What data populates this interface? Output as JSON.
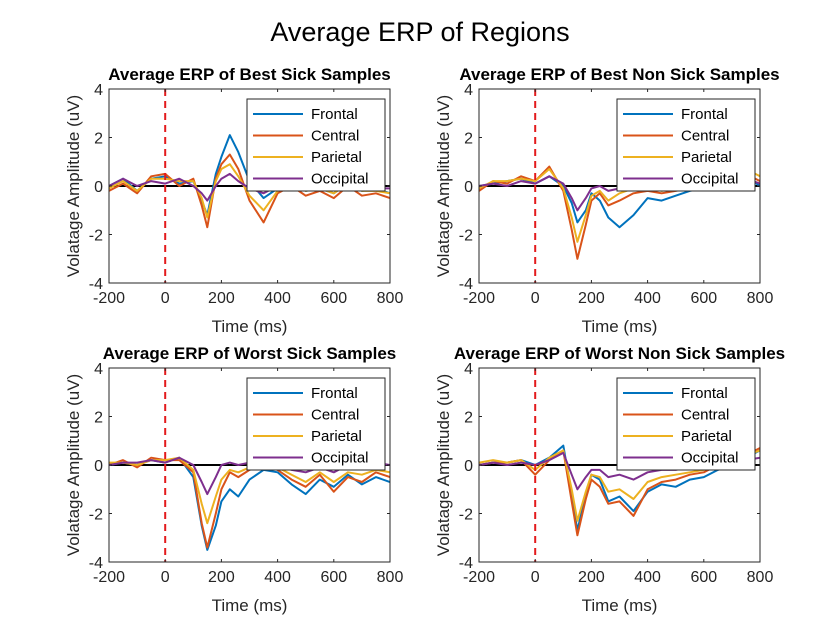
{
  "figure_title": "Average ERP of Regions",
  "chart_data": [
    {
      "type": "line",
      "title": "Average ERP of Best Sick Samples",
      "xlabel": "Time (ms)",
      "ylabel": "Volatage Amplitude (uV)",
      "xlim": [
        -200,
        800
      ],
      "ylim": [
        -4,
        4
      ],
      "xticks": [
        "-200",
        "0",
        "200",
        "400",
        "600",
        "800"
      ],
      "yticks": [
        "-4",
        "-2",
        "0",
        "2",
        "4"
      ],
      "legend_position": "top-right",
      "stimulus_marker_x": 0,
      "zero_line": true,
      "series": [
        {
          "name": "Frontal",
          "color": "#0072BD",
          "x": [
            -200,
            -150,
            -100,
            -50,
            0,
            50,
            100,
            130,
            150,
            180,
            200,
            230,
            260,
            300,
            350,
            400,
            450,
            500,
            550,
            600,
            650,
            700,
            750,
            800
          ],
          "y": [
            0.0,
            0.3,
            -0.2,
            0.3,
            0.4,
            0.1,
            0.2,
            -0.6,
            -1.2,
            0.5,
            1.2,
            2.1,
            1.4,
            0.2,
            -0.5,
            -0.1,
            0.1,
            -0.2,
            -0.1,
            -0.3,
            0.1,
            -0.2,
            -0.1,
            -0.3
          ]
        },
        {
          "name": "Central",
          "color": "#D95319",
          "x": [
            -200,
            -150,
            -100,
            -50,
            0,
            50,
            100,
            130,
            150,
            180,
            200,
            230,
            260,
            300,
            350,
            400,
            450,
            500,
            550,
            600,
            650,
            700,
            750,
            800
          ],
          "y": [
            -0.2,
            0.1,
            -0.3,
            0.4,
            0.5,
            0.0,
            0.3,
            -0.8,
            -1.7,
            0.3,
            0.9,
            1.3,
            0.7,
            -0.6,
            -1.5,
            -0.3,
            0.0,
            -0.4,
            -0.2,
            -0.5,
            0.0,
            -0.4,
            -0.3,
            -0.5
          ]
        },
        {
          "name": "Parietal",
          "color": "#EDB120",
          "x": [
            -200,
            -150,
            -100,
            -50,
            0,
            50,
            100,
            130,
            150,
            180,
            200,
            230,
            260,
            300,
            350,
            400,
            450,
            500,
            550,
            600,
            650,
            700,
            750,
            800
          ],
          "y": [
            -0.1,
            0.2,
            -0.2,
            0.3,
            0.3,
            0.2,
            0.2,
            -0.5,
            -1.3,
            0.2,
            0.7,
            0.9,
            0.4,
            -0.4,
            -1.0,
            -0.2,
            0.1,
            -0.2,
            -0.1,
            -0.3,
            0.1,
            -0.2,
            -0.2,
            -0.3
          ]
        },
        {
          "name": "Occipital",
          "color": "#7E2F8E",
          "x": [
            -200,
            -150,
            -100,
            -50,
            0,
            50,
            100,
            130,
            150,
            180,
            200,
            230,
            260,
            300,
            350,
            400,
            450,
            500,
            550,
            600,
            650,
            700,
            750,
            800
          ],
          "y": [
            0.0,
            0.3,
            0.0,
            0.2,
            0.1,
            0.3,
            0.0,
            -0.3,
            -0.6,
            0.0,
            0.3,
            0.5,
            0.2,
            -0.1,
            -0.3,
            0.0,
            0.1,
            -0.1,
            0.0,
            -0.1,
            0.1,
            0.0,
            -0.1,
            -0.1
          ]
        }
      ]
    },
    {
      "type": "line",
      "title": "Average ERP of Best Non Sick Samples",
      "xlabel": "Time (ms)",
      "ylabel": "Volatage Amplitude (uV)",
      "xlim": [
        -200,
        800
      ],
      "ylim": [
        -4,
        4
      ],
      "xticks": [
        "-200",
        "0",
        "200",
        "400",
        "600",
        "800"
      ],
      "yticks": [
        "-4",
        "-2",
        "0",
        "2",
        "4"
      ],
      "legend_position": "top-right",
      "stimulus_marker_x": 0,
      "zero_line": true,
      "series": [
        {
          "name": "Frontal",
          "color": "#0072BD",
          "x": [
            -200,
            -150,
            -100,
            -50,
            0,
            50,
            100,
            130,
            150,
            180,
            200,
            230,
            260,
            300,
            350,
            400,
            450,
            500,
            550,
            600,
            650,
            700,
            750,
            800
          ],
          "y": [
            0.0,
            0.1,
            0.2,
            0.3,
            0.1,
            0.4,
            0.0,
            -0.7,
            -1.5,
            -1.0,
            -0.3,
            -0.6,
            -1.3,
            -1.7,
            -1.2,
            -0.5,
            -0.6,
            -0.4,
            -0.2,
            -0.1,
            0.2,
            0.1,
            0.4,
            0.0
          ]
        },
        {
          "name": "Central",
          "color": "#D95319",
          "x": [
            -200,
            -150,
            -100,
            -50,
            0,
            50,
            100,
            130,
            150,
            180,
            200,
            230,
            260,
            300,
            350,
            400,
            450,
            500,
            550,
            600,
            650,
            700,
            750,
            800
          ],
          "y": [
            -0.2,
            0.2,
            0.1,
            0.4,
            0.2,
            0.8,
            -0.2,
            -1.8,
            -3.0,
            -1.6,
            -0.6,
            -0.3,
            -0.8,
            -0.6,
            -0.3,
            -0.2,
            -0.3,
            -0.2,
            -0.1,
            0.0,
            0.2,
            0.1,
            0.5,
            0.2
          ]
        },
        {
          "name": "Parietal",
          "color": "#EDB120",
          "x": [
            -200,
            -150,
            -100,
            -50,
            0,
            50,
            100,
            130,
            150,
            180,
            200,
            230,
            260,
            300,
            350,
            400,
            450,
            500,
            550,
            600,
            650,
            700,
            750,
            800
          ],
          "y": [
            -0.1,
            0.2,
            0.2,
            0.3,
            0.2,
            0.7,
            -0.1,
            -1.3,
            -2.3,
            -1.2,
            -0.4,
            -0.2,
            -0.6,
            -0.3,
            -0.1,
            0.0,
            -0.2,
            -0.1,
            0.0,
            0.1,
            0.3,
            0.2,
            0.7,
            0.4
          ]
        },
        {
          "name": "Occipital",
          "color": "#7E2F8E",
          "x": [
            -200,
            -150,
            -100,
            -50,
            0,
            50,
            100,
            130,
            150,
            180,
            200,
            230,
            260,
            300,
            350,
            400,
            450,
            500,
            550,
            600,
            650,
            700,
            750,
            800
          ],
          "y": [
            0.0,
            0.1,
            0.0,
            0.2,
            0.1,
            0.4,
            0.1,
            -0.5,
            -1.0,
            -0.5,
            -0.1,
            0.0,
            -0.2,
            -0.1,
            0.0,
            0.0,
            -0.1,
            0.0,
            0.1,
            0.1,
            0.2,
            0.1,
            0.3,
            0.1
          ]
        }
      ]
    },
    {
      "type": "line",
      "title": "Average ERP of Worst Sick Samples",
      "xlabel": "Time (ms)",
      "ylabel": "Volatage Amplitude (uV)",
      "xlim": [
        -200,
        800
      ],
      "ylim": [
        -4,
        4
      ],
      "xticks": [
        "-200",
        "0",
        "200",
        "400",
        "600",
        "800"
      ],
      "yticks": [
        "-4",
        "-2",
        "0",
        "2",
        "4"
      ],
      "legend_position": "top-right",
      "stimulus_marker_x": 0,
      "zero_line": true,
      "series": [
        {
          "name": "Frontal",
          "color": "#0072BD",
          "x": [
            -200,
            -150,
            -100,
            -50,
            0,
            50,
            100,
            130,
            150,
            180,
            200,
            230,
            260,
            300,
            350,
            400,
            450,
            500,
            550,
            600,
            650,
            700,
            750,
            800
          ],
          "y": [
            0.0,
            0.1,
            0.0,
            0.2,
            0.1,
            0.3,
            -0.5,
            -2.5,
            -3.5,
            -2.5,
            -1.5,
            -1.0,
            -1.3,
            -0.6,
            -0.2,
            -0.3,
            -0.8,
            -1.2,
            -0.6,
            -0.9,
            -0.4,
            -0.8,
            -0.5,
            -0.7
          ]
        },
        {
          "name": "Central",
          "color": "#D95319",
          "x": [
            -200,
            -150,
            -100,
            -50,
            0,
            50,
            100,
            130,
            150,
            180,
            200,
            230,
            260,
            300,
            350,
            400,
            450,
            500,
            550,
            600,
            650,
            700,
            750,
            800
          ],
          "y": [
            0.0,
            0.2,
            -0.1,
            0.3,
            0.2,
            0.2,
            -0.3,
            -2.4,
            -3.4,
            -2.0,
            -1.0,
            -0.3,
            -0.5,
            -0.2,
            0.0,
            -0.2,
            -0.6,
            -0.9,
            -0.4,
            -1.1,
            -0.5,
            -0.7,
            -0.3,
            -0.5
          ]
        },
        {
          "name": "Parietal",
          "color": "#EDB120",
          "x": [
            -200,
            -150,
            -100,
            -50,
            0,
            50,
            100,
            130,
            150,
            180,
            200,
            230,
            260,
            300,
            350,
            400,
            450,
            500,
            550,
            600,
            650,
            700,
            750,
            800
          ],
          "y": [
            0.1,
            0.1,
            0.0,
            0.2,
            0.2,
            0.3,
            -0.2,
            -1.6,
            -2.4,
            -1.3,
            -0.6,
            -0.2,
            -0.3,
            -0.1,
            0.1,
            -0.1,
            -0.4,
            -0.7,
            -0.3,
            -0.7,
            -0.3,
            -0.4,
            -0.2,
            -0.3
          ]
        },
        {
          "name": "Occipital",
          "color": "#7E2F8E",
          "x": [
            -200,
            -150,
            -100,
            -50,
            0,
            50,
            100,
            130,
            150,
            180,
            200,
            230,
            260,
            300,
            350,
            400,
            450,
            500,
            550,
            600,
            650,
            700,
            750,
            800
          ],
          "y": [
            0.0,
            0.1,
            0.1,
            0.2,
            0.1,
            0.3,
            0.0,
            -0.7,
            -1.2,
            -0.5,
            0.0,
            0.1,
            0.0,
            0.1,
            0.1,
            0.0,
            -0.2,
            -0.3,
            -0.1,
            -0.3,
            0.0,
            -0.1,
            0.1,
            0.0
          ]
        }
      ]
    },
    {
      "type": "line",
      "title": "Average ERP of Worst Non Sick Samples",
      "xlabel": "Time (ms)",
      "ylabel": "Volatage Amplitude (uV)",
      "xlim": [
        -200,
        800
      ],
      "ylim": [
        -4,
        4
      ],
      "xticks": [
        "-200",
        "0",
        "200",
        "400",
        "600",
        "800"
      ],
      "yticks": [
        "-4",
        "-2",
        "0",
        "2",
        "4"
      ],
      "legend_position": "top-right",
      "stimulus_marker_x": 0,
      "zero_line": true,
      "series": [
        {
          "name": "Frontal",
          "color": "#0072BD",
          "x": [
            -200,
            -150,
            -100,
            -50,
            0,
            50,
            100,
            130,
            150,
            180,
            200,
            230,
            260,
            300,
            350,
            400,
            450,
            500,
            550,
            600,
            650,
            700,
            750,
            800
          ],
          "y": [
            0.0,
            0.1,
            0.1,
            0.2,
            0.0,
            0.3,
            0.8,
            -1.2,
            -2.7,
            -1.2,
            -0.4,
            -0.6,
            -1.5,
            -1.3,
            -1.9,
            -1.1,
            -0.8,
            -0.9,
            -0.6,
            -0.5,
            -0.2,
            0.0,
            0.3,
            0.6
          ]
        },
        {
          "name": "Central",
          "color": "#D95319",
          "x": [
            -200,
            -150,
            -100,
            -50,
            0,
            50,
            100,
            130,
            150,
            180,
            200,
            230,
            260,
            300,
            350,
            400,
            450,
            500,
            550,
            600,
            650,
            700,
            750,
            800
          ],
          "y": [
            0.0,
            0.1,
            0.1,
            0.2,
            -0.4,
            0.2,
            0.6,
            -1.5,
            -2.9,
            -1.4,
            -0.6,
            -0.9,
            -1.6,
            -1.5,
            -2.1,
            -1.0,
            -0.7,
            -0.6,
            -0.4,
            -0.3,
            0.0,
            0.1,
            0.4,
            0.7
          ]
        },
        {
          "name": "Parietal",
          "color": "#EDB120",
          "x": [
            -200,
            -150,
            -100,
            -50,
            0,
            50,
            100,
            130,
            150,
            180,
            200,
            230,
            260,
            300,
            350,
            400,
            450,
            500,
            550,
            600,
            650,
            700,
            750,
            800
          ],
          "y": [
            0.1,
            0.2,
            0.1,
            0.2,
            -0.2,
            0.3,
            0.6,
            -1.0,
            -2.3,
            -1.1,
            -0.4,
            -0.5,
            -1.1,
            -1.0,
            -1.4,
            -0.7,
            -0.5,
            -0.4,
            -0.3,
            -0.2,
            0.1,
            0.2,
            0.4,
            0.6
          ]
        },
        {
          "name": "Occipital",
          "color": "#7E2F8E",
          "x": [
            -200,
            -150,
            -100,
            -50,
            0,
            50,
            100,
            130,
            150,
            180,
            200,
            230,
            260,
            300,
            350,
            400,
            450,
            500,
            550,
            600,
            650,
            700,
            750,
            800
          ],
          "y": [
            0.0,
            0.1,
            0.0,
            0.1,
            0.0,
            0.2,
            0.5,
            -0.4,
            -1.0,
            -0.5,
            -0.2,
            -0.2,
            -0.5,
            -0.4,
            -0.6,
            -0.3,
            -0.2,
            -0.2,
            -0.1,
            0.0,
            0.1,
            0.1,
            0.2,
            0.3
          ]
        }
      ]
    }
  ]
}
